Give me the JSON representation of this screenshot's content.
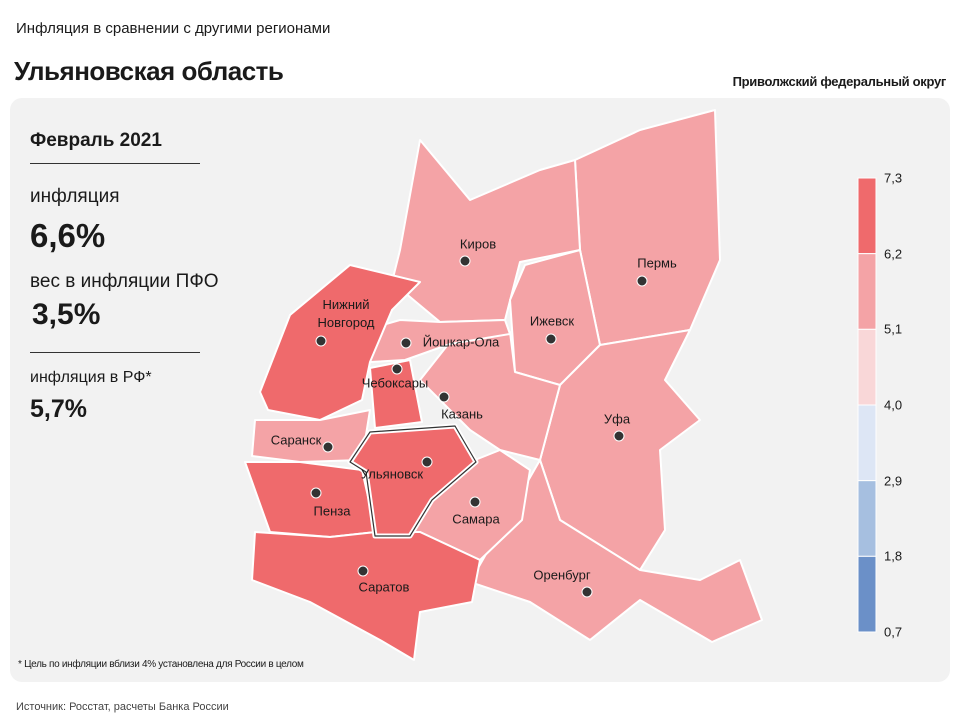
{
  "header": {
    "subtitle": "Инфляция в сравнении с другими регионами",
    "title": "Ульяновская область",
    "district": "Приволжский федеральный округ"
  },
  "summary": {
    "period": "Февраль 2021",
    "inflation_label": "инфляция",
    "inflation_value": "6,6%",
    "weight_label": "вес в инфляции ПФО",
    "weight_value": "3,5%",
    "rf_label": "инфляция в РФ*",
    "rf_value": "5,7%"
  },
  "cities": [
    "Киров",
    "Пермь",
    "Нижний Новгород",
    "Ижевск",
    "Йошкар-Ола",
    "Чебоксары",
    "Казань",
    "Уфа",
    "Саранск",
    "Ульяновск",
    "Пенза",
    "Самара",
    "Оренбург",
    "Саратов"
  ],
  "legend": {
    "ticks": [
      "7,3",
      "6,2",
      "5,1",
      "4,0",
      "2,9",
      "1,8",
      "0,7"
    ],
    "colors": [
      "#ef6a6c",
      "#f4a3a6",
      "#f9d7d8",
      "#dde6f5",
      "#a6bfe0",
      "#6b90c8"
    ]
  },
  "footnote": "* Цель по инфляции вблизи 4% установлена для России в целом",
  "source": "Источник: Росстат, расчеты Банка России"
}
